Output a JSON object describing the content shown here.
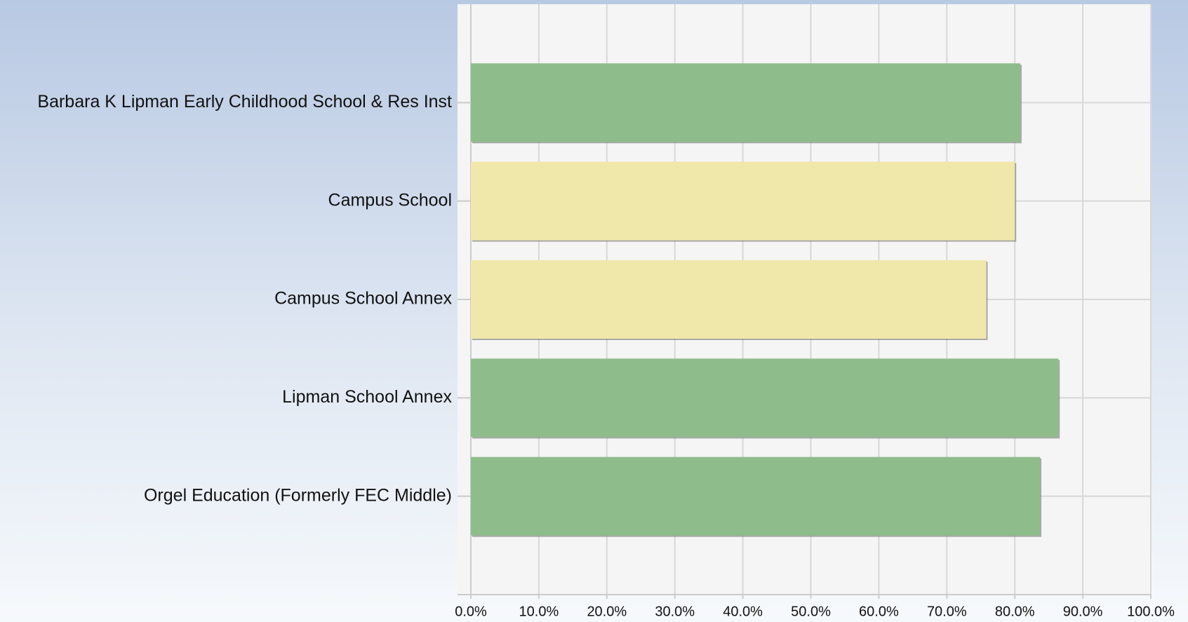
{
  "chart_data": {
    "type": "bar",
    "orientation": "horizontal",
    "categories": [
      "Barbara K Lipman Early Childhood School & Res Inst",
      "Campus School",
      "Campus School Annex",
      "Lipman School Annex",
      "Orgel Education (Formerly FEC Middle)"
    ],
    "values": [
      80.8,
      80.0,
      75.8,
      86.4,
      83.7
    ],
    "colors": [
      "#8fbc8b",
      "#f0e8aa",
      "#f0e8aa",
      "#8fbc8b",
      "#8fbc8b"
    ],
    "xlim": [
      0,
      100
    ],
    "xticks": [
      {
        "value": 0,
        "label": "0.0%"
      },
      {
        "value": 10,
        "label": "10.0%"
      },
      {
        "value": 20,
        "label": "20.0%"
      },
      {
        "value": 30,
        "label": "30.0%"
      },
      {
        "value": 40,
        "label": "40.0%"
      },
      {
        "value": 50,
        "label": "50.0%"
      },
      {
        "value": 60,
        "label": "60.0%"
      },
      {
        "value": 70,
        "label": "70.0%"
      },
      {
        "value": 80,
        "label": "80.0%"
      },
      {
        "value": 90,
        "label": "90.0%"
      },
      {
        "value": 100,
        "label": "100.0%"
      }
    ],
    "grid": true
  }
}
